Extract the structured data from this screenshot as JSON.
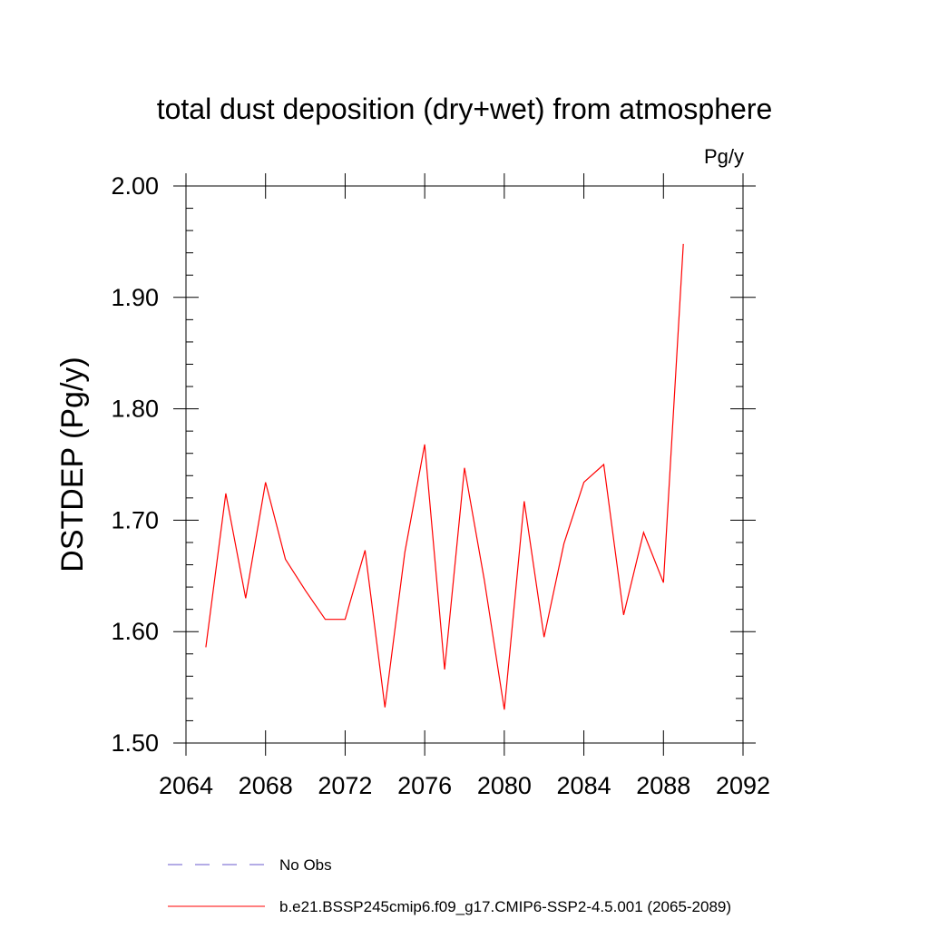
{
  "chart_data": {
    "type": "line",
    "title": "total dust deposition (dry+wet) from atmosphere",
    "units_label": "Pg/y",
    "xlabel": "",
    "ylabel": "DSTDEP  (Pg/y)",
    "xlim": [
      2064,
      2092
    ],
    "ylim": [
      1.5,
      2.0
    ],
    "x_ticks": [
      2064,
      2068,
      2072,
      2076,
      2080,
      2084,
      2088,
      2092
    ],
    "x_tick_labels": [
      "2064",
      "2068",
      "2072",
      "2076",
      "2080",
      "2084",
      "2088",
      "2092"
    ],
    "y_ticks": [
      1.5,
      1.6,
      1.7,
      1.8,
      1.9,
      2.0
    ],
    "y_tick_labels": [
      "1.50",
      "1.60",
      "1.70",
      "1.80",
      "1.90",
      "2.00"
    ],
    "grid": false,
    "series": [
      {
        "name": "b.e21.BSSP245cmip6.f09_g17.CMIP6-SSP2-4.5.001 (2065-2089)",
        "color": "#ff0000",
        "x": [
          2065,
          2066,
          2067,
          2068,
          2069,
          2070,
          2071,
          2072,
          2073,
          2074,
          2075,
          2076,
          2077,
          2078,
          2079,
          2080,
          2081,
          2082,
          2083,
          2084,
          2085,
          2086,
          2087,
          2088,
          2089
        ],
        "values": [
          1.586,
          1.724,
          1.63,
          1.734,
          1.665,
          1.637,
          1.611,
          1.611,
          1.673,
          1.532,
          1.671,
          1.768,
          1.566,
          1.747,
          1.646,
          1.53,
          1.717,
          1.595,
          1.679,
          1.734,
          1.75,
          1.615,
          1.689,
          1.644,
          1.948
        ]
      }
    ],
    "legend": [
      {
        "label": "No Obs",
        "color": "#6a5acd",
        "style": "dashed"
      },
      {
        "label": "b.e21.BSSP245cmip6.f09_g17.CMIP6-SSP2-4.5.001 (2065-2089)",
        "color": "#ff0000",
        "style": "solid"
      }
    ]
  }
}
